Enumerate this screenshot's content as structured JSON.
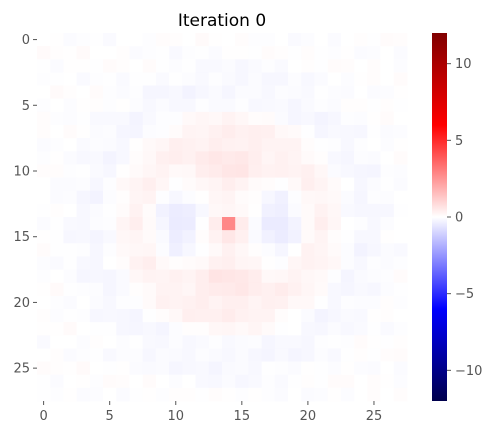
{
  "chart_data": {
    "type": "heatmap",
    "title": "Iteration 0",
    "xlabel": "",
    "ylabel": "",
    "rows": 28,
    "cols": 28,
    "x_ticks": [
      0,
      5,
      10,
      15,
      20,
      25
    ],
    "y_ticks": [
      0,
      5,
      10,
      15,
      20,
      25
    ],
    "colormap": "seismic",
    "vmin": -12,
    "vmax": 12,
    "colorbar_ticks": [
      -10,
      -5,
      0,
      5,
      10
    ],
    "colorbar_tick_labels": [
      "−10",
      "−5",
      "0",
      "5",
      "10"
    ],
    "grid": false,
    "legend": "none",
    "peak": {
      "row": 14,
      "col": 14,
      "value": 2.8
    }
  },
  "colors": {
    "axes_background": "#ffffff",
    "tick_label": "#555555",
    "tick_mark": "#555555",
    "title": "#000000"
  }
}
